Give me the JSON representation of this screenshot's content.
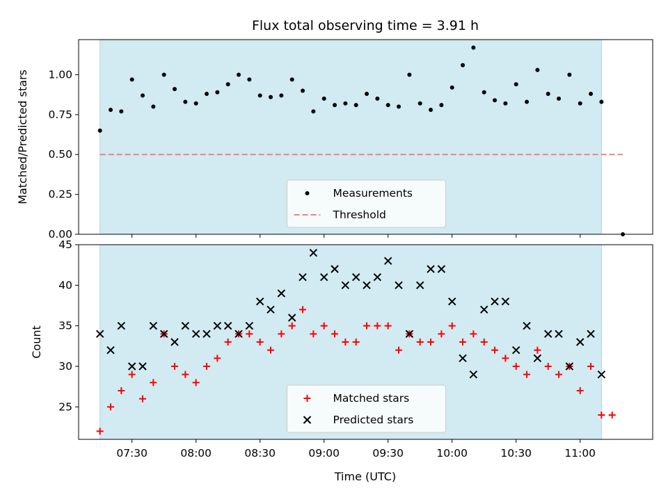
{
  "figure": {
    "title": "Flux total observing time = 3.91 h",
    "xlabel": "Time (UTC)"
  },
  "colors": {
    "shade": "#add8e6",
    "measurements": "#000000",
    "threshold": "#f08080",
    "matched": "#ff0000",
    "predicted": "#000000"
  },
  "chart_data": [
    {
      "type": "scatter",
      "ylabel": "Matched/Predicted stars",
      "ylim": [
        0.0,
        1.22
      ],
      "yticks": [
        "0.00",
        "0.25",
        "0.50",
        "0.75",
        "1.00"
      ],
      "xlim": [
        "07:05",
        "11:34"
      ],
      "xticks": [
        "07:30",
        "08:00",
        "08:30",
        "09:00",
        "09:30",
        "10:00",
        "10:30",
        "11:00"
      ],
      "shaded_span": [
        "07:15",
        "11:10"
      ],
      "threshold": {
        "value": 0.5,
        "from": "07:15",
        "to": "11:20"
      },
      "legend": {
        "position": "lower center",
        "items": [
          "Measurements",
          "Threshold"
        ]
      },
      "series": [
        {
          "name": "Measurements",
          "marker": "dot",
          "x": [
            "07:15",
            "07:20",
            "07:25",
            "07:30",
            "07:35",
            "07:40",
            "07:45",
            "07:50",
            "07:55",
            "08:00",
            "08:05",
            "08:10",
            "08:15",
            "08:20",
            "08:25",
            "08:30",
            "08:35",
            "08:40",
            "08:45",
            "08:50",
            "08:55",
            "09:00",
            "09:05",
            "09:10",
            "09:15",
            "09:20",
            "09:25",
            "09:30",
            "09:35",
            "09:40",
            "09:45",
            "09:50",
            "09:55",
            "10:00",
            "10:05",
            "10:10",
            "10:15",
            "10:20",
            "10:25",
            "10:30",
            "10:35",
            "10:40",
            "10:45",
            "10:50",
            "10:55",
            "11:00",
            "11:05",
            "11:10",
            "11:20"
          ],
          "y": [
            0.65,
            0.78,
            0.77,
            0.97,
            0.87,
            0.8,
            1.0,
            0.91,
            0.83,
            0.82,
            0.88,
            0.89,
            0.94,
            1.0,
            0.97,
            0.87,
            0.86,
            0.87,
            0.97,
            0.9,
            0.77,
            0.85,
            0.81,
            0.82,
            0.81,
            0.88,
            0.85,
            0.81,
            0.8,
            1.0,
            0.82,
            0.78,
            0.81,
            0.92,
            1.06,
            1.17,
            0.89,
            0.84,
            0.82,
            0.94,
            0.83,
            1.03,
            0.88,
            0.85,
            1.0,
            0.82,
            0.88,
            0.83,
            0.0
          ]
        }
      ]
    },
    {
      "type": "scatter",
      "ylabel": "Count",
      "ylim": [
        21,
        45
      ],
      "yticks": [
        "25",
        "30",
        "35",
        "40",
        "45"
      ],
      "xlim": [
        "07:05",
        "11:34"
      ],
      "xticks": [
        "07:30",
        "08:00",
        "08:30",
        "09:00",
        "09:30",
        "10:00",
        "10:30",
        "11:00"
      ],
      "shaded_span": [
        "07:15",
        "11:10"
      ],
      "legend": {
        "position": "lower center",
        "items": [
          "Matched stars",
          "Predicted stars"
        ]
      },
      "series": [
        {
          "name": "Matched stars",
          "marker": "plus",
          "x": [
            "07:15",
            "07:20",
            "07:25",
            "07:30",
            "07:35",
            "07:40",
            "07:45",
            "07:50",
            "07:55",
            "08:00",
            "08:05",
            "08:10",
            "08:15",
            "08:20",
            "08:25",
            "08:30",
            "08:35",
            "08:40",
            "08:45",
            "08:50",
            "08:55",
            "09:00",
            "09:05",
            "09:10",
            "09:15",
            "09:20",
            "09:25",
            "09:30",
            "09:35",
            "09:40",
            "09:45",
            "09:50",
            "09:55",
            "10:00",
            "10:05",
            "10:10",
            "10:15",
            "10:20",
            "10:25",
            "10:30",
            "10:35",
            "10:40",
            "10:45",
            "10:50",
            "10:55",
            "11:00",
            "11:05",
            "11:10",
            "11:15"
          ],
          "y": [
            22,
            25,
            27,
            29,
            26,
            28,
            34,
            30,
            29,
            28,
            30,
            31,
            33,
            34,
            34,
            33,
            32,
            34,
            35,
            37,
            34,
            35,
            34,
            33,
            33,
            35,
            35,
            35,
            32,
            34,
            33,
            33,
            34,
            35,
            33,
            34,
            33,
            32,
            31,
            30,
            29,
            32,
            30,
            29,
            30,
            27,
            30,
            24,
            24
          ]
        },
        {
          "name": "Predicted stars",
          "marker": "x",
          "x": [
            "07:15",
            "07:20",
            "07:25",
            "07:30",
            "07:35",
            "07:40",
            "07:45",
            "07:50",
            "07:55",
            "08:00",
            "08:05",
            "08:10",
            "08:15",
            "08:20",
            "08:25",
            "08:30",
            "08:35",
            "08:40",
            "08:45",
            "08:50",
            "08:55",
            "09:00",
            "09:05",
            "09:10",
            "09:15",
            "09:20",
            "09:25",
            "09:30",
            "09:35",
            "09:40",
            "09:45",
            "09:50",
            "09:55",
            "10:00",
            "10:05",
            "10:10",
            "10:15",
            "10:20",
            "10:25",
            "10:30",
            "10:35",
            "10:40",
            "10:45",
            "10:50",
            "10:55",
            "11:00",
            "11:05",
            "11:10"
          ],
          "y": [
            34,
            32,
            35,
            30,
            30,
            35,
            34,
            33,
            35,
            34,
            34,
            35,
            35,
            34,
            35,
            38,
            37,
            39,
            36,
            41,
            44,
            41,
            42,
            40,
            41,
            40,
            41,
            43,
            40,
            34,
            40,
            42,
            42,
            38,
            31,
            29,
            37,
            38,
            38,
            32,
            35,
            31,
            34,
            34,
            30,
            33,
            34,
            29
          ]
        }
      ]
    }
  ]
}
